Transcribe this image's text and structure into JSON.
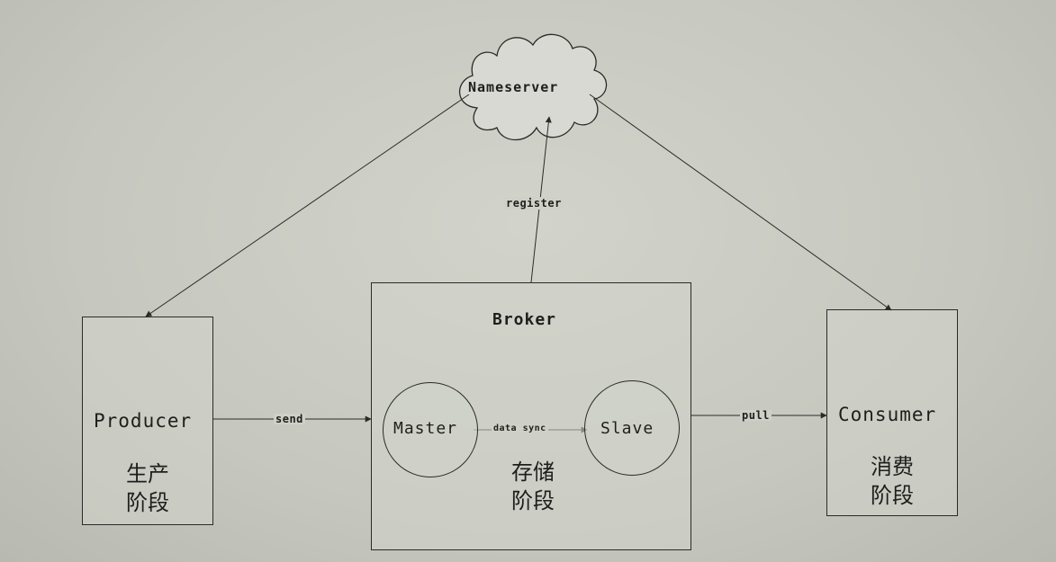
{
  "nameserver": {
    "label": "Nameserver"
  },
  "producer": {
    "label": "Producer",
    "stage_label": "生产\n阶段"
  },
  "broker": {
    "label": "Broker",
    "stage_label": "存储\n阶段"
  },
  "master": {
    "label": "Master"
  },
  "slave": {
    "label": "Slave"
  },
  "consumer": {
    "label": "Consumer",
    "stage_label": "消费\n阶段"
  },
  "edges": {
    "register": "register",
    "send": "send",
    "data_sync": "data sync",
    "pull": "pull"
  }
}
